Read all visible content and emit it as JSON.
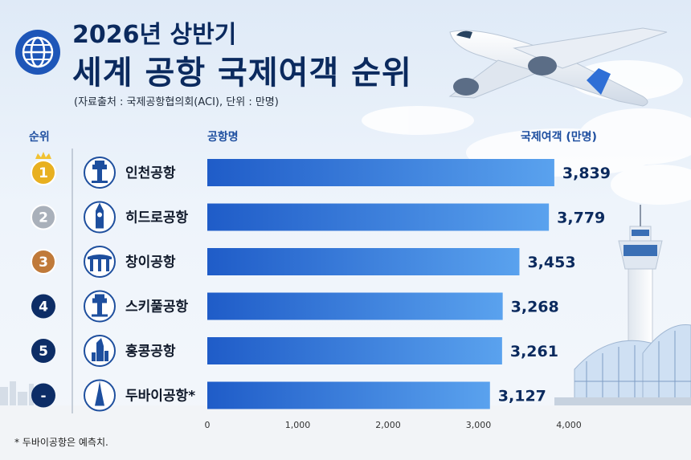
{
  "title_line1": "2026년 상반기",
  "title_line2": "세계 공항 국제여객 순위",
  "source": "(자료출처 : 국제공항협의회(ACI), 단위 : 만명)",
  "headers": {
    "rank": "순위",
    "airport": "공항명",
    "value": "국제여객 (만명)"
  },
  "footnote": "* 두바이공항은 예측치.",
  "colors": {
    "title": "#0b2a5e",
    "bar": "#2f6fd6",
    "gold": "#e8b020",
    "silver": "#a9b0ba",
    "bronze": "#c07a3a",
    "navy": "#0d2d66"
  },
  "icons": [
    "tower-icon",
    "big-ben-icon",
    "marina-bay-icon",
    "tower-icon",
    "skyscraper-icon",
    "burj-icon"
  ],
  "chart_data": {
    "type": "bar",
    "orientation": "horizontal",
    "title": "세계 공항 국제여객 순위",
    "categories": [
      "인천공항",
      "히드로공항",
      "창이공항",
      "스키풀공항",
      "홍콩공항",
      "두바이공항*"
    ],
    "ranks": [
      "1",
      "2",
      "3",
      "4",
      "5",
      "-"
    ],
    "values": [
      3839,
      3779,
      3453,
      3268,
      3261,
      3127
    ],
    "value_labels": [
      "3,839",
      "3,779",
      "3,453",
      "3,268",
      "3,261",
      "3,127"
    ],
    "x_ticks": [
      "0",
      "1,000",
      "2,000",
      "3,000",
      "4,000"
    ],
    "x_tick_values": [
      0,
      1000,
      2000,
      3000,
      4000
    ],
    "xlim": [
      0,
      4000
    ],
    "grid": false
  }
}
